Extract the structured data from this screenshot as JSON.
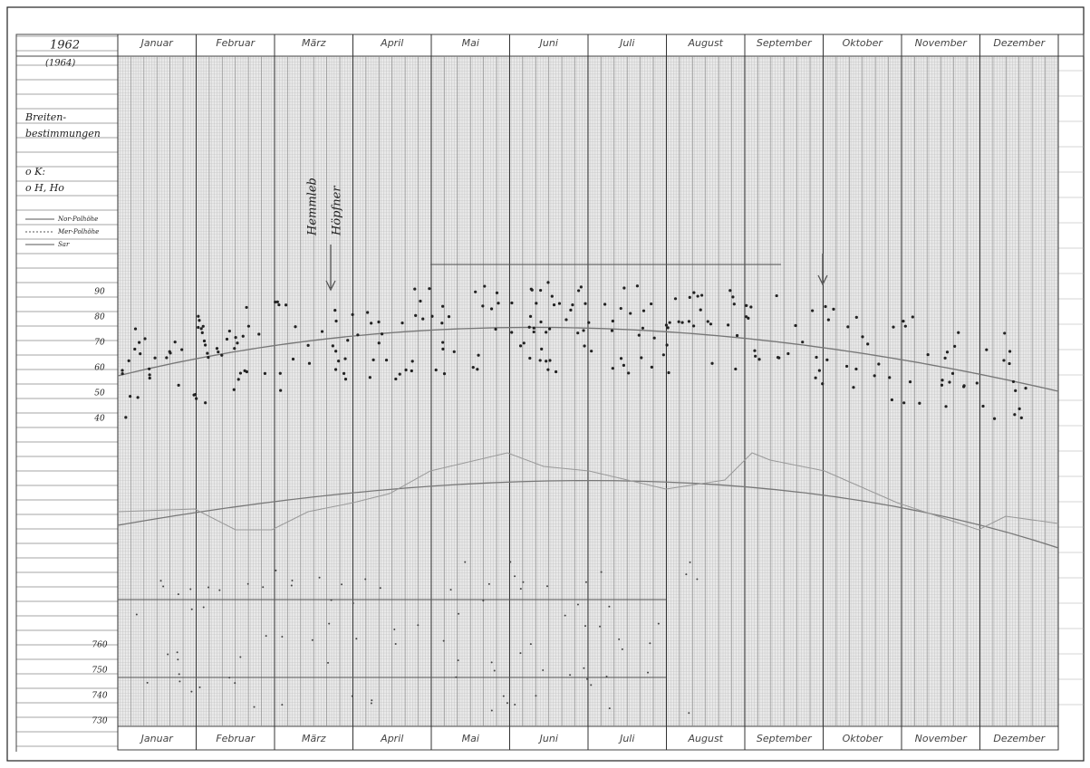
{
  "header": {
    "year": "1962",
    "note": "(1964)"
  },
  "left_notes": [
    "Breiten-",
    "bestimmungen",
    "o K:",
    "o H, Ho"
  ],
  "legend": [
    "Nor-Polhöhe",
    "Mer-Polhöhe",
    "Sar"
  ],
  "months": [
    "Januar",
    "Februar",
    "März",
    "April",
    "Mai",
    "Juni",
    "Juli",
    "August",
    "September",
    "Oktober",
    "November",
    "Dezember"
  ],
  "names": [
    "Hemmleb",
    "Höpfner"
  ],
  "scale_labels": [
    {
      "text": "90",
      "row": "upper"
    },
    {
      "text": "80",
      "row": "upper"
    },
    {
      "text": "70",
      "row": "upper"
    },
    {
      "text": "60",
      "row": "upper"
    },
    {
      "text": "50",
      "row": "upper"
    },
    {
      "text": "40",
      "row": "upper"
    },
    {
      "text": "760",
      "row": "lower"
    },
    {
      "text": "750",
      "row": "lower"
    },
    {
      "text": "740",
      "row": "lower"
    },
    {
      "text": "730",
      "row": "lower"
    }
  ]
}
